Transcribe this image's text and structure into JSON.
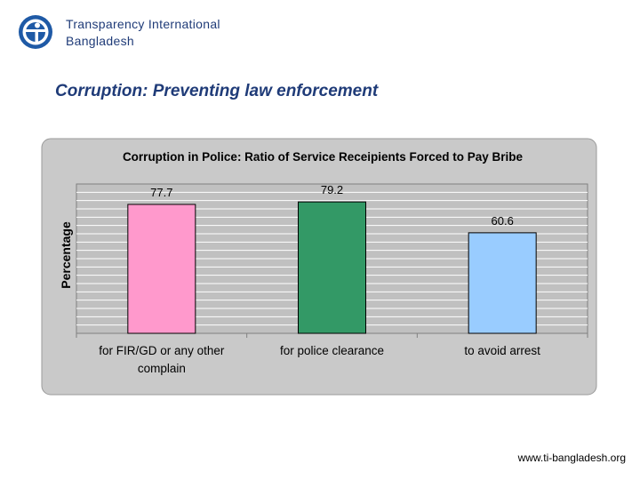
{
  "header": {
    "org_line1": "Transparency International",
    "org_line2": "Bangladesh"
  },
  "slide_title": "Corruption: Preventing law enforcement",
  "footer_url": "www.ti-bangladesh.org",
  "chart_data": {
    "type": "bar",
    "title": "Corruption in Police: Ratio of Service Receipients Forced to Pay Bribe",
    "xlabel": "",
    "ylabel": "Percentage",
    "categories": [
      [
        "for FIR/GD or any other",
        "complain"
      ],
      [
        "for police clearance"
      ],
      [
        "to avoid arrest"
      ]
    ],
    "values": [
      77.7,
      79.2,
      60.6
    ],
    "value_labels": [
      "77.7",
      "79.2",
      "60.6"
    ],
    "ylim": [
      0,
      90
    ],
    "grid": true,
    "colors": [
      "#ff99cc",
      "#339966",
      "#99ccff"
    ],
    "plot_background": "#c0c0c0",
    "frame_background": "#c9c9c9"
  }
}
